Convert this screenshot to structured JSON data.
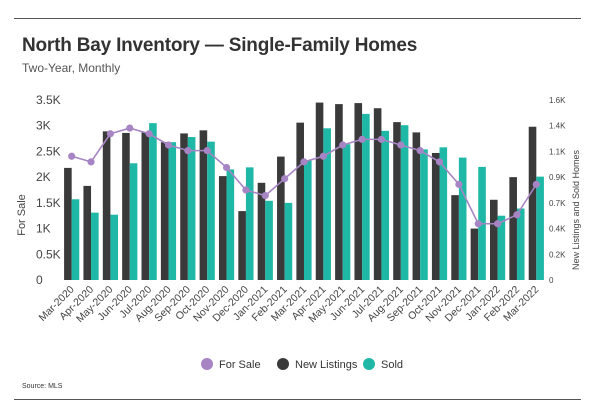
{
  "title": "North Bay Inventory — Single-Family Homes",
  "subtitle": "Two-Year, Monthly",
  "source": "Source: MLS",
  "chart_data": {
    "type": "bar",
    "categories": [
      "Mar-2020",
      "Apr-2020",
      "May-2020",
      "Jun-2020",
      "Jul-2020",
      "Aug-2020",
      "Sep-2020",
      "Oct-2020",
      "Nov-2020",
      "Dec-2020",
      "Jan-2021",
      "Feb-2021",
      "Mar-2021",
      "Apr-2021",
      "May-2021",
      "Jun-2021",
      "Jul-2021",
      "Aug-2021",
      "Sep-2021",
      "Oct-2021",
      "Nov-2021",
      "Dec-2021",
      "Jan-2022",
      "Feb-2022",
      "Mar-2022"
    ],
    "series": [
      {
        "name": "New Listings",
        "type": "bar",
        "axis": "left",
        "color": "#3a3a3a",
        "values": [
          2180,
          1830,
          2890,
          2860,
          2880,
          2680,
          2850,
          2910,
          2020,
          1340,
          1890,
          2400,
          3060,
          3450,
          3420,
          3440,
          3340,
          3070,
          2870,
          2470,
          1650,
          1000,
          1560,
          2000,
          2980
        ]
      },
      {
        "name": "Sold",
        "type": "bar",
        "axis": "left",
        "color": "#1fb8a6",
        "values": [
          1570,
          1310,
          1270,
          2270,
          3050,
          2680,
          2780,
          2690,
          2150,
          2190,
          1540,
          1500,
          2330,
          2950,
          2640,
          3230,
          2900,
          3010,
          2540,
          2580,
          2380,
          2200,
          1250,
          1390,
          2010
        ]
      },
      {
        "name": "For Sale",
        "type": "line",
        "axis": "right",
        "color": "#a785c4",
        "values": [
          1100,
          1050,
          1300,
          1350,
          1300,
          1200,
          1150,
          1150,
          1000,
          800,
          750,
          900,
          1050,
          1100,
          1200,
          1250,
          1250,
          1200,
          1150,
          1050,
          850,
          500,
          500,
          580,
          850
        ]
      }
    ],
    "ylabel": "For Sale",
    "y2label": "New Listings and Sold Homes",
    "ylim": [
      0,
      3500
    ],
    "y2lim": [
      0,
      1600
    ],
    "yticks": [
      "0",
      "0.5K",
      "1K",
      "1.5K",
      "2K",
      "2.5K",
      "3K",
      "3.5K"
    ],
    "y2ticks": [
      "0",
      "0.2K",
      "0.4K",
      "0.7K",
      "0.9K",
      "1.1K",
      "1.4K",
      "1.6K"
    ],
    "grid": false,
    "legend": [
      "For Sale",
      "New Listings",
      "Sold"
    ],
    "legend_position": "bottom"
  }
}
